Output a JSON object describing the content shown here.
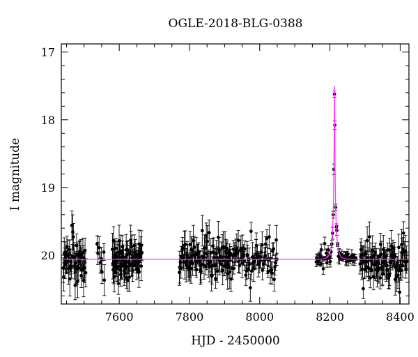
{
  "chart_data": {
    "type": "scatter",
    "title": "OGLE-2018-BLG-0388",
    "xlabel": "HJD - 2450000",
    "ylabel": "I magnitude",
    "xlim": [
      7435,
      8425
    ],
    "ylim": [
      20.72,
      16.88
    ],
    "y_inverted": true,
    "grid": false,
    "legend": "none",
    "x_ticks": [
      7600,
      7800,
      8000,
      8200,
      8400
    ],
    "y_ticks": [
      17,
      18,
      19,
      20
    ],
    "colors": {
      "points": "#000000",
      "model": "#ff33ff"
    },
    "model": {
      "name": "",
      "baseline_mag": 20.06,
      "peak_mag": 17.5,
      "t0": 8213,
      "tE": 10,
      "u0": 0.05
    },
    "data_segments": [
      {
        "t_start": 7440,
        "t_end": 7505,
        "n": 48,
        "err_min": 0.1,
        "err_max": 0.26
      },
      {
        "t_start": 7535,
        "t_end": 7560,
        "n": 8,
        "err_min": 0.12,
        "err_max": 0.24
      },
      {
        "t_start": 7580,
        "t_end": 7665,
        "n": 80,
        "err_min": 0.1,
        "err_max": 0.24
      },
      {
        "t_start": 7770,
        "t_end": 7915,
        "n": 90,
        "err_min": 0.1,
        "err_max": 0.25
      },
      {
        "t_start": 7905,
        "t_end": 8050,
        "n": 75,
        "err_min": 0.08,
        "err_max": 0.22
      },
      {
        "t_start": 8160,
        "t_end": 8275,
        "n": 60,
        "err_min": 0.02,
        "err_max": 0.1
      },
      {
        "t_start": 8285,
        "t_end": 8420,
        "n": 90,
        "err_min": 0.1,
        "err_max": 0.24
      }
    ]
  }
}
